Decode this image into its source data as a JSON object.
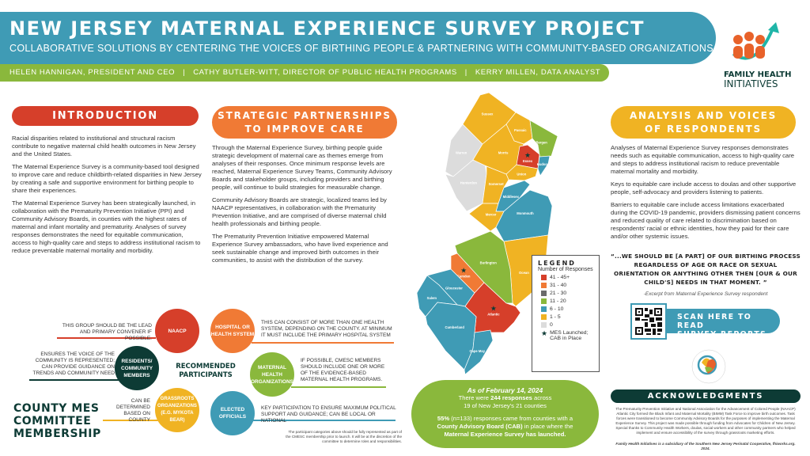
{
  "header": {
    "title": "NEW JERSEY MATERNAL EXPERIENCE SURVEY PROJECT",
    "subtitle": "COLLABORATIVE SOLUTIONS BY CENTERING THE VOICES OF BIRTHING PEOPLE & PARTNERING WITH COMMUNITY-BASED ORGANIZATIONS",
    "authors": [
      "HELEN HANNIGAN, PRESIDENT AND CEO",
      "CATHY BUTLER-WITT, DIRECTOR OF PUBLIC HEALTH PROGRAMS",
      "KERRY MILLEN, DATA ANALYST"
    ],
    "separator": "|"
  },
  "logo": {
    "line1": "FAMILY HEALTH",
    "line2": "INITIATIVES"
  },
  "intro": {
    "title": "INTRODUCTION",
    "paragraphs": [
      "Racial disparities related to institutional and structural racism contribute to negative maternal child health outcomes in New Jersey and the United States.",
      "The Maternal Experience Survey is a community-based tool designed to improve care and reduce childbirth-related disparities in New Jersey by creating a safe and supportive environment for birthing people to share their experiences.",
      "The Maternal Experience Survey has been strategically launched, in collaboration with the Prematurity Prevention Initiative (PPI) and Community Advisory Boards, in counties with the highest rates of maternal and infant mortality and prematurity. Analyses of survey responses demonstrates the need for equitable communication, access to high-quality care and steps to address institutional racism to reduce preventable maternal mortality and morbidity."
    ]
  },
  "strategic": {
    "title_line1": "STRATEGIC PARTNERSHIPS",
    "title_line2": "TO IMPROVE CARE",
    "paragraphs": [
      "Through the Maternal Experience Survey, birthing people guide strategic development of maternal care as themes emerge from analyses of their responses. Once minimum response levels are reached, Maternal Experience Survey Teams, Community Advisory Boards and stakeholder groups, including providers and birthing people, will continue to build strategies for measurable change.",
      "Community Advisory Boards are strategic, localized teams led by NAACP representatives, in collaboration with the Prematurity Prevention Initiative, and are comprised of diverse maternal child health professionals and birthing people.",
      "The Prematurity Prevention Initiative empowered Maternal Experience Survey ambassadors, who have lived experience and seek sustainable change and improved birth outcomes in their communities, to assist with the distribution of the survey."
    ]
  },
  "analysis": {
    "title_line1": "ANALYSIS AND VOICES",
    "title_line2": "OF RESPONDENTS",
    "paragraphs": [
      "Analyses of Maternal Experience Survey responses demonstrates needs such as equitable communication, access to high-quality care and steps to address institutional racism to reduce preventable maternal mortality and morbidity.",
      "Keys to equitable care include access to doulas and other supportive people, self-advocacy and providers listening to patients.",
      "Barriers to equitable care include access limitations exacerbated during the COVID-19 pandemic, providers dismissing patient concerns and reduced quality of care related to discrimination based on respondents' racial or ethnic identities, how they paid for their care and/or other systemic issues."
    ],
    "quote": "“...WE SHOULD BE [A PART] OF OUR BIRTHING PROCESS REGARDLESS OF AGE OR RACE OR SEXUAL ORIENTATION OR ANYTHING OTHER THEN [OUR & OUR CHILD'S] NEEDS IN THAT MOMENT. ”",
    "quote_source": "-Excerpt from Maternal Experience Survey respondent"
  },
  "scan": {
    "label_line1": "SCAN HERE TO READ",
    "label_line2": "SURVEY REPORTS"
  },
  "ppi_logo": {
    "text": "PREMATURITY PREVENTION INITIATIVE",
    "url": "snjpc.org"
  },
  "acknowledgments": {
    "title": "ACKNOWLEDGMENTS",
    "text": "The Prematurity Prevention Initiative and National Association for the Advancement of Colored People (NAACP) Atlantic City formed the Black Infant and Maternal Mortality (BIMM) Task Force to improve birth outcomes. Task forces were transitioned to become Community Advisory Boards for the purposes of implementing the Maternal Experience Survey. This project was made possible through funding from Advocates for Children of New Jersey. Special thanks to Community Health Workers, doulas, social workers and other community partners who helped implement and ensure accessibility of the survey through grassroots marketing efforts.",
    "footer": "Family Health Initiatives is a subsidiary of the Southern New Jersey Perinatal Cooperative, fhiworks.org. 2024."
  },
  "committee": {
    "title_line1": "COUNTY MES",
    "title_line2": "COMMITTEE",
    "title_line3": "MEMBERSHIP",
    "center_line1": "RECOMMENDED",
    "center_line2": "PARTICIPANTS",
    "members": [
      {
        "name": "NAACP",
        "note": "THIS GROUP SHOULD BE THE LEAD AND PRIMARY CONVENER IF POSSIBLE.",
        "color": "#d63f2a"
      },
      {
        "name": "HOSPITAL OR HEALTH SYSTEM",
        "note": "THIS CAN CONSIST OF MORE THAN ONE HEALTH SYSTEM, DEPENDING ON THE COUNTY. AT MINIMUM IT MUST INCLUDE THE PRIMARY HOSPITAL SYSTEM",
        "color": "#f07a35"
      },
      {
        "name": "RESIDENTS/ COMMUNITY MEMBERS",
        "note": "ENSURES THE VOICE OF THE COMMUNITY IS REPRESENTED; CAN PROVIDE GUIDANCE ON TRENDS AND COMMUNITY NEED",
        "color": "#0d3b35"
      },
      {
        "name": "MATERNAL HEALTH ORGANIZATIONS",
        "note": "IF POSSIBLE, CMESC MEMBERS SHOULD INCLUDE ONE OR MORE OF THE EVIDENCE-BASED MATERNAL HEALTH PROGRAMS.",
        "color": "#8ab83c"
      },
      {
        "name": "GRASSROOTS ORGANIZATIONS (E.G. MYKOTA BEAR)",
        "note": "CAN BE DETERMINED BASED ON COUNTY",
        "color": "#f0b323"
      },
      {
        "name": "ELECTED OFFICIALS",
        "note": "KEY PARTICIPATION TO ENSURE MAXIMUM POLITICAL SUPPORT AND GUIDANCE; CAN BE LOCAL OR NATIONAL",
        "color": "#3f9bb5"
      }
    ],
    "footnote": "The participant categories above should be fully represented as part of the CMESC membership prior to launch. It will be at the discretion of the committee to determine roles and responsibilities."
  },
  "map": {
    "legend_title": "LEGEND",
    "legend_subtitle": "Number of Responses",
    "bins": [
      {
        "label": "41 - 45+",
        "color": "#d63f2a"
      },
      {
        "label": "31 - 40",
        "color": "#f07a35"
      },
      {
        "label": "21 - 30",
        "color": "#6b6b6b"
      },
      {
        "label": "11 - 20",
        "color": "#8ab83c"
      },
      {
        "label": "6 - 10",
        "color": "#3f9bb5"
      },
      {
        "label": "1 - 5",
        "color": "#f0b323"
      },
      {
        "label": "0",
        "color": "#dcdcdc"
      }
    ],
    "star_label": "MES Launched; CAB in Place",
    "counties": [
      {
        "name": "Sussex",
        "bin": "1 - 5"
      },
      {
        "name": "Passaic",
        "bin": "1 - 5"
      },
      {
        "name": "Bergen",
        "bin": "11 - 20"
      },
      {
        "name": "Warren",
        "bin": "0"
      },
      {
        "name": "Hunterdon",
        "bin": "0"
      },
      {
        "name": "Morris",
        "bin": "1 - 5"
      },
      {
        "name": "Essex",
        "bin": "41 - 45+",
        "star": true
      },
      {
        "name": "Hudson",
        "bin": "6 - 10"
      },
      {
        "name": "Union",
        "bin": "1 - 5"
      },
      {
        "name": "Somerset",
        "bin": "1 - 5"
      },
      {
        "name": "Middlesex",
        "bin": "6 - 10"
      },
      {
        "name": "Monmouth",
        "bin": "6 - 10"
      },
      {
        "name": "Mercer",
        "bin": "1 - 5"
      },
      {
        "name": "Ocean",
        "bin": "1 - 5"
      },
      {
        "name": "Burlington",
        "bin": "11 - 20"
      },
      {
        "name": "Camden",
        "bin": "31 - 40",
        "star": true
      },
      {
        "name": "Gloucester",
        "bin": "6 - 10"
      },
      {
        "name": "Salem",
        "bin": "6 - 10"
      },
      {
        "name": "Atlantic",
        "bin": "41 - 45+",
        "star": true
      },
      {
        "name": "Cumberland",
        "bin": "6 - 10"
      },
      {
        "name": "Cape May",
        "bin": "6 - 10"
      }
    ]
  },
  "stats": {
    "date": "As of February 14, 2024",
    "line1_pre": "There were ",
    "line1_bold": "244 responses",
    "line1_post": " across",
    "line2": "19 of New Jersey's 21 counties",
    "pct_bold": "55%",
    "pct_rest": " (n=133) responses came from counties with a",
    "cab_bold": "County Advisory Board (CAB)",
    "cab_rest": " in place where the",
    "last_bold": "Maternal Experience Survey has launched."
  }
}
